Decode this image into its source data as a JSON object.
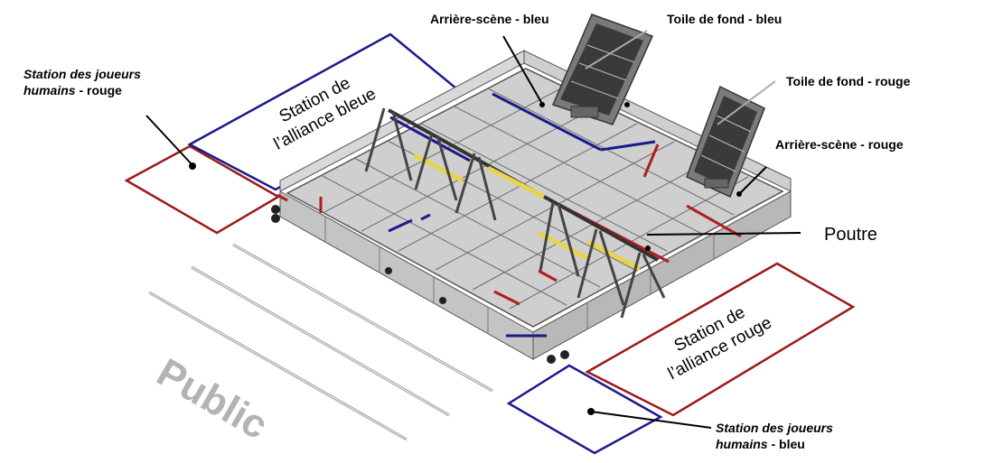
{
  "labels": {
    "backstage_blue": "Arrière-scène - bleu",
    "backdrop_blue": "Toile de fond - bleu",
    "backdrop_red": "Toile de fond - rouge",
    "backstage_red": "Arrière-scène - rouge",
    "beam": "Poutre",
    "human_station_red_line1_italic": "Station des joueurs",
    "human_station_red_line2_italic": "humains",
    "human_station_red_line2_rest": " - rouge",
    "human_station_blue_line1_italic": "Station des joueurs",
    "human_station_blue_line2_italic": "humains",
    "human_station_blue_line2_rest": " - bleu",
    "alliance_blue_line1": "Station de",
    "alliance_blue_line2": "l’alliance bleue",
    "alliance_red_line1": "Station de",
    "alliance_red_line2": "l’alliance rouge",
    "audience": "Public"
  },
  "colors": {
    "blue": "#1a1a8c",
    "red": "#9b1b1b",
    "floor": "#cfcfcf",
    "wall": "#bdbdbd",
    "grid": "#6e6e6e",
    "beam_yellow": "#e8d44a",
    "audience_text": "#b3b3b3"
  }
}
